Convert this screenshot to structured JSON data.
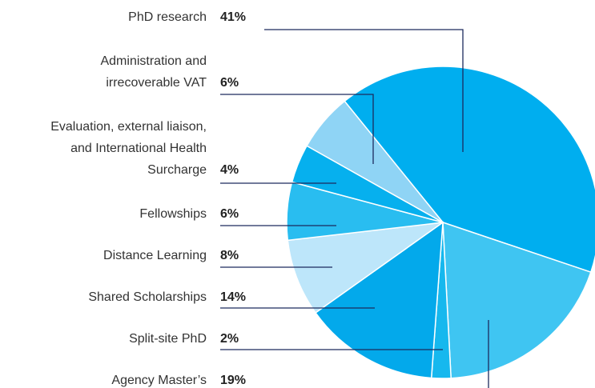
{
  "chart_data": {
    "type": "pie",
    "categories": [
      [
        "PhD research"
      ],
      [
        "Agency Master’s"
      ],
      [
        "Split-site PhD"
      ],
      [
        "Shared Scholarships"
      ],
      [
        "Distance Learning"
      ],
      [
        "Fellowships"
      ],
      [
        "Evaluation, external liaison,",
        "and International Health",
        "Surcharge"
      ],
      [
        "Administration and",
        "irrecoverable VAT"
      ]
    ],
    "values": [
      41,
      19,
      2,
      14,
      8,
      6,
      4,
      6
    ],
    "value_labels": [
      "41%",
      "19%",
      "2%",
      "14%",
      "8%",
      "6%",
      "4%",
      "6%"
    ],
    "colors": [
      "#00aeef",
      "#3fc5f2",
      "#16b8ee",
      "#03a9eb",
      "#bde6fa",
      "#29bdf0",
      "#06b0ee",
      "#8fd4f5"
    ]
  }
}
